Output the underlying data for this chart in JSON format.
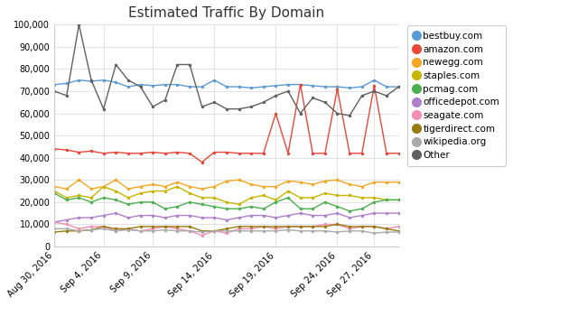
{
  "title": "Estimated Traffic By Domain",
  "x_labels": [
    "Aug 30, 2016",
    "Sep 4, 2016",
    "Sep 9, 2016",
    "Sep 14, 2016",
    "Sep 19, 2016",
    "Sep 24, 2016",
    "Sep 27, 2016"
  ],
  "ylim": [
    0,
    100000
  ],
  "yticks": [
    0,
    10000,
    20000,
    30000,
    40000,
    50000,
    60000,
    70000,
    80000,
    90000,
    100000
  ],
  "series": [
    {
      "name": "bestbuy.com",
      "color": "#5B9BD5",
      "data": [
        73000,
        73500,
        75000,
        74500,
        75000,
        74000,
        72000,
        73000,
        72500,
        73000,
        73000,
        72000,
        72000,
        75000,
        72000,
        72000,
        71500,
        72000,
        72500,
        73000,
        73000,
        72500,
        72000,
        72000,
        71500,
        72000,
        75000,
        72000,
        72000
      ]
    },
    {
      "name": "amazon.com",
      "color": "#E8483A",
      "data": [
        44000,
        43500,
        42500,
        43000,
        42000,
        42500,
        42000,
        42000,
        42500,
        42000,
        42500,
        42000,
        38000,
        42500,
        42500,
        42000,
        42000,
        42000,
        60000,
        42000,
        73000,
        42000,
        42000,
        71000,
        42000,
        42000,
        72500,
        42000,
        42000
      ]
    },
    {
      "name": "newegg.com",
      "color": "#F5A623",
      "data": [
        27000,
        26000,
        30000,
        26000,
        27000,
        30000,
        26000,
        27000,
        28000,
        27000,
        29000,
        27000,
        26000,
        27000,
        29500,
        30000,
        28000,
        27000,
        27000,
        29500,
        29000,
        28000,
        29500,
        30000,
        28000,
        27000,
        29000,
        29000,
        29000
      ]
    },
    {
      "name": "staples.com",
      "color": "#C8B400",
      "data": [
        25000,
        22000,
        23000,
        22000,
        27000,
        25000,
        22000,
        24000,
        25000,
        25000,
        27000,
        24000,
        22000,
        22000,
        20000,
        19000,
        22000,
        23000,
        21000,
        25000,
        22000,
        22000,
        24000,
        23000,
        23000,
        22000,
        22000,
        21000,
        21000
      ]
    },
    {
      "name": "pcmag.com",
      "color": "#4CAF50",
      "data": [
        24000,
        21000,
        22000,
        20000,
        22000,
        21000,
        19000,
        20000,
        20000,
        17000,
        18000,
        20000,
        19000,
        18000,
        17000,
        17000,
        18000,
        17000,
        20000,
        22000,
        17000,
        17000,
        20000,
        18000,
        16000,
        17000,
        20000,
        21000,
        21000
      ]
    },
    {
      "name": "officedepot.com",
      "color": "#B07FCC",
      "data": [
        11000,
        12000,
        13000,
        13000,
        14000,
        15000,
        13000,
        14000,
        14000,
        13000,
        14000,
        14000,
        13000,
        13000,
        12000,
        13000,
        14000,
        14000,
        13000,
        14000,
        15000,
        14000,
        14000,
        15000,
        13000,
        14000,
        15000,
        15000,
        15000
      ]
    },
    {
      "name": "seagate.com",
      "color": "#F48FB1",
      "data": [
        11000,
        10000,
        8000,
        9000,
        9000,
        7000,
        8000,
        7000,
        8000,
        9000,
        8000,
        7000,
        5000,
        7000,
        6000,
        8000,
        8000,
        9000,
        8000,
        9000,
        9000,
        9000,
        10000,
        10000,
        8000,
        9000,
        9000,
        8000,
        9000
      ]
    },
    {
      "name": "tigerdirect.com",
      "color": "#9A7B10",
      "data": [
        6500,
        7000,
        7000,
        7500,
        9000,
        8000,
        8000,
        9000,
        9000,
        9000,
        9000,
        9000,
        7000,
        7000,
        8000,
        9000,
        9000,
        9000,
        9000,
        9000,
        9000,
        9000,
        9000,
        10000,
        9000,
        9000,
        9000,
        8000,
        7000
      ]
    },
    {
      "name": "wikipedia.org",
      "color": "#AAAAAA",
      "data": [
        8000,
        8000,
        7000,
        7500,
        8000,
        7000,
        7500,
        7000,
        7000,
        7500,
        7000,
        7000,
        6500,
        7000,
        7000,
        7000,
        7000,
        7000,
        7000,
        7500,
        7000,
        7000,
        7000,
        6500,
        7000,
        7000,
        6000,
        6500,
        6500
      ]
    },
    {
      "name": "Other",
      "color": "#606060",
      "data": [
        70000,
        68000,
        100000,
        75000,
        62000,
        82000,
        75000,
        72000,
        63000,
        66000,
        82000,
        82000,
        63000,
        65000,
        62000,
        62000,
        63000,
        65000,
        68000,
        70000,
        60000,
        67000,
        65000,
        60000,
        59000,
        68000,
        70000,
        68000,
        72000
      ]
    }
  ]
}
